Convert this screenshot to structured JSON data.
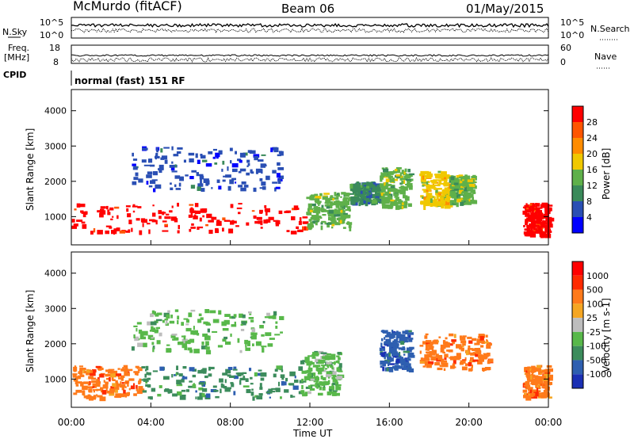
{
  "header": {
    "station": "McMurdo (fitACF)",
    "beam": "Beam 06",
    "date": "01/May/2015"
  },
  "top_panels": {
    "nsky_label": "N.Sky",
    "nsky_ticks": [
      "10^5",
      "10^0"
    ],
    "nsearch_label": "N.Search",
    "nsearch_ticks": [
      "10^5",
      "10^0"
    ],
    "freq_label_1": "Freq.",
    "freq_label_2": "[MHz]",
    "freq_ticks": [
      "18",
      "8"
    ],
    "nave_label": "Nave",
    "nave_ticks": [
      "60",
      "0"
    ],
    "cpid_label": "CPID",
    "cpid_value": "normal (fast) 151 RF"
  },
  "chart_data": [
    {
      "type": "heatmap",
      "name": "power",
      "ylabel": "Slant Range [km]",
      "yticks": [
        1000,
        2000,
        3000,
        4000
      ],
      "ylim": [
        200,
        4600
      ],
      "colorbar_label": "Power [dB]",
      "colorbar_ticks": [
        "4",
        "8",
        "12",
        "16",
        "20",
        "24",
        "28"
      ],
      "colors": [
        "#0000ff",
        "#2a4fb4",
        "#3a8a5a",
        "#5fb04a",
        "#f0c800",
        "#ff8c00",
        "#ff5500",
        "#ff0000"
      ],
      "regions": [
        {
          "x": [
            0.0,
            11.8
          ],
          "y": [
            600,
            1400
          ],
          "level": 7
        },
        {
          "x": [
            11.8,
            14.0
          ],
          "y": [
            700,
            1700
          ],
          "level": 3
        },
        {
          "x": [
            14.0,
            15.5
          ],
          "y": [
            1400,
            2000
          ],
          "level": 2
        },
        {
          "x": [
            15.5,
            17.0
          ],
          "y": [
            1300,
            2400
          ],
          "level": 3
        },
        {
          "x": [
            17.5,
            19.0
          ],
          "y": [
            1300,
            2300
          ],
          "level": 4
        },
        {
          "x": [
            19.0,
            20.2
          ],
          "y": [
            1400,
            2200
          ],
          "level": 3
        },
        {
          "x": [
            22.7,
            24.0
          ],
          "y": [
            500,
            1400
          ],
          "level": 7
        },
        {
          "x": [
            3.0,
            10.5
          ],
          "y": [
            1800,
            3000
          ],
          "level": 1
        }
      ]
    },
    {
      "type": "heatmap",
      "name": "velocity",
      "ylabel": "Slant Range [km]",
      "yticks": [
        1000,
        2000,
        3000,
        4000
      ],
      "ylim": [
        200,
        4600
      ],
      "colorbar_label": "Velocity [m s-1]",
      "colorbar_ticks": [
        "1000",
        "500",
        "100",
        "25",
        "-25",
        "-100",
        "-500",
        "-1000"
      ],
      "colors": [
        "#1b30b4",
        "#2e5fb0",
        "#3c8c5c",
        "#58b84a",
        "#bdbdbd",
        "#f5a623",
        "#ff7a1a",
        "#ff2a00",
        "#ff0000"
      ],
      "regions": [
        {
          "x": [
            0.0,
            3.5
          ],
          "y": [
            500,
            1400
          ],
          "level": 6
        },
        {
          "x": [
            3.5,
            11.5
          ],
          "y": [
            500,
            1400
          ],
          "level": 2
        },
        {
          "x": [
            11.5,
            13.5
          ],
          "y": [
            600,
            1800
          ],
          "level": 3
        },
        {
          "x": [
            15.5,
            17.0
          ],
          "y": [
            1300,
            2400
          ],
          "level": 1
        },
        {
          "x": [
            17.5,
            21.0
          ],
          "y": [
            1300,
            2300
          ],
          "level": 6
        },
        {
          "x": [
            22.7,
            24.0
          ],
          "y": [
            500,
            1400
          ],
          "level": 6
        },
        {
          "x": [
            3.0,
            10.5
          ],
          "y": [
            1800,
            3000
          ],
          "level": 3
        }
      ]
    }
  ],
  "x_axis": {
    "label": "Time UT",
    "ticks": [
      "00:00",
      "04:00",
      "08:00",
      "12:00",
      "16:00",
      "20:00",
      "00:00"
    ],
    "range": [
      0,
      24
    ]
  }
}
